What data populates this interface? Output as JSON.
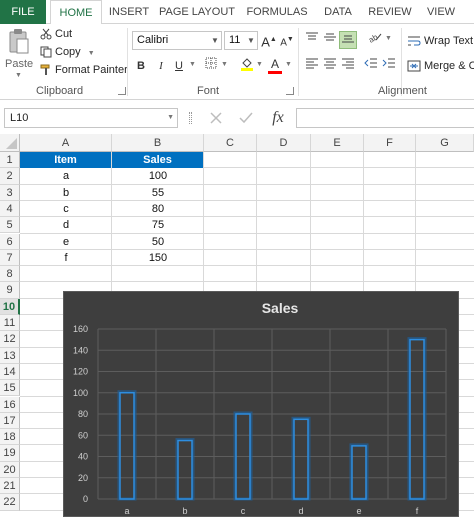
{
  "ribbon": {
    "tabs": [
      "FILE",
      "HOME",
      "INSERT",
      "PAGE LAYOUT",
      "FORMULAS",
      "DATA",
      "REVIEW",
      "VIEW"
    ],
    "active_tab": "HOME",
    "clipboard": {
      "paste_label": "Paste",
      "cut_label": "Cut",
      "copy_label": "Copy",
      "format_painter_label": "Format Painter",
      "group_label": "Clipboard"
    },
    "font": {
      "font_name": "Calibri",
      "font_size": "11",
      "bold_label": "B",
      "italic_label": "I",
      "underline_label": "U",
      "grow_label": "A",
      "shrink_label": "A",
      "font_color_label": "A",
      "group_label": "Font"
    },
    "alignment": {
      "wrap_text_label": "Wrap Text",
      "merge_label": "Merge & C",
      "group_label": "Alignment"
    }
  },
  "formula_bar": {
    "name_box": "L10",
    "fx_label": "fx",
    "formula_value": ""
  },
  "sheet": {
    "columns": [
      "A",
      "B",
      "C",
      "D",
      "E",
      "F",
      "G"
    ],
    "rows": [
      "1",
      "2",
      "3",
      "4",
      "5",
      "6",
      "7",
      "8",
      "9",
      "10",
      "11",
      "12",
      "13",
      "14",
      "15",
      "16",
      "17",
      "18",
      "19",
      "20",
      "21",
      "22"
    ],
    "selected_row": "10",
    "header": [
      "Item",
      "Sales"
    ],
    "data": [
      [
        "a",
        "100"
      ],
      [
        "b",
        "55"
      ],
      [
        "c",
        "80"
      ],
      [
        "d",
        "75"
      ],
      [
        "e",
        "50"
      ],
      [
        "f",
        "150"
      ]
    ]
  },
  "colors": {
    "excel_green": "#217346",
    "header_fill": "#0070c0",
    "chart_bg": "#3e3e3e",
    "bar_stroke": "#2e8ee0"
  },
  "chart_data": {
    "type": "bar",
    "title": "Sales",
    "categories": [
      "a",
      "b",
      "c",
      "d",
      "e",
      "f"
    ],
    "values": [
      100,
      55,
      80,
      75,
      50,
      150
    ],
    "y_ticks": [
      "0",
      "20",
      "40",
      "60",
      "80",
      "100",
      "120",
      "140",
      "160"
    ],
    "ylim": [
      0,
      160
    ],
    "grid": true,
    "legend": "none"
  }
}
